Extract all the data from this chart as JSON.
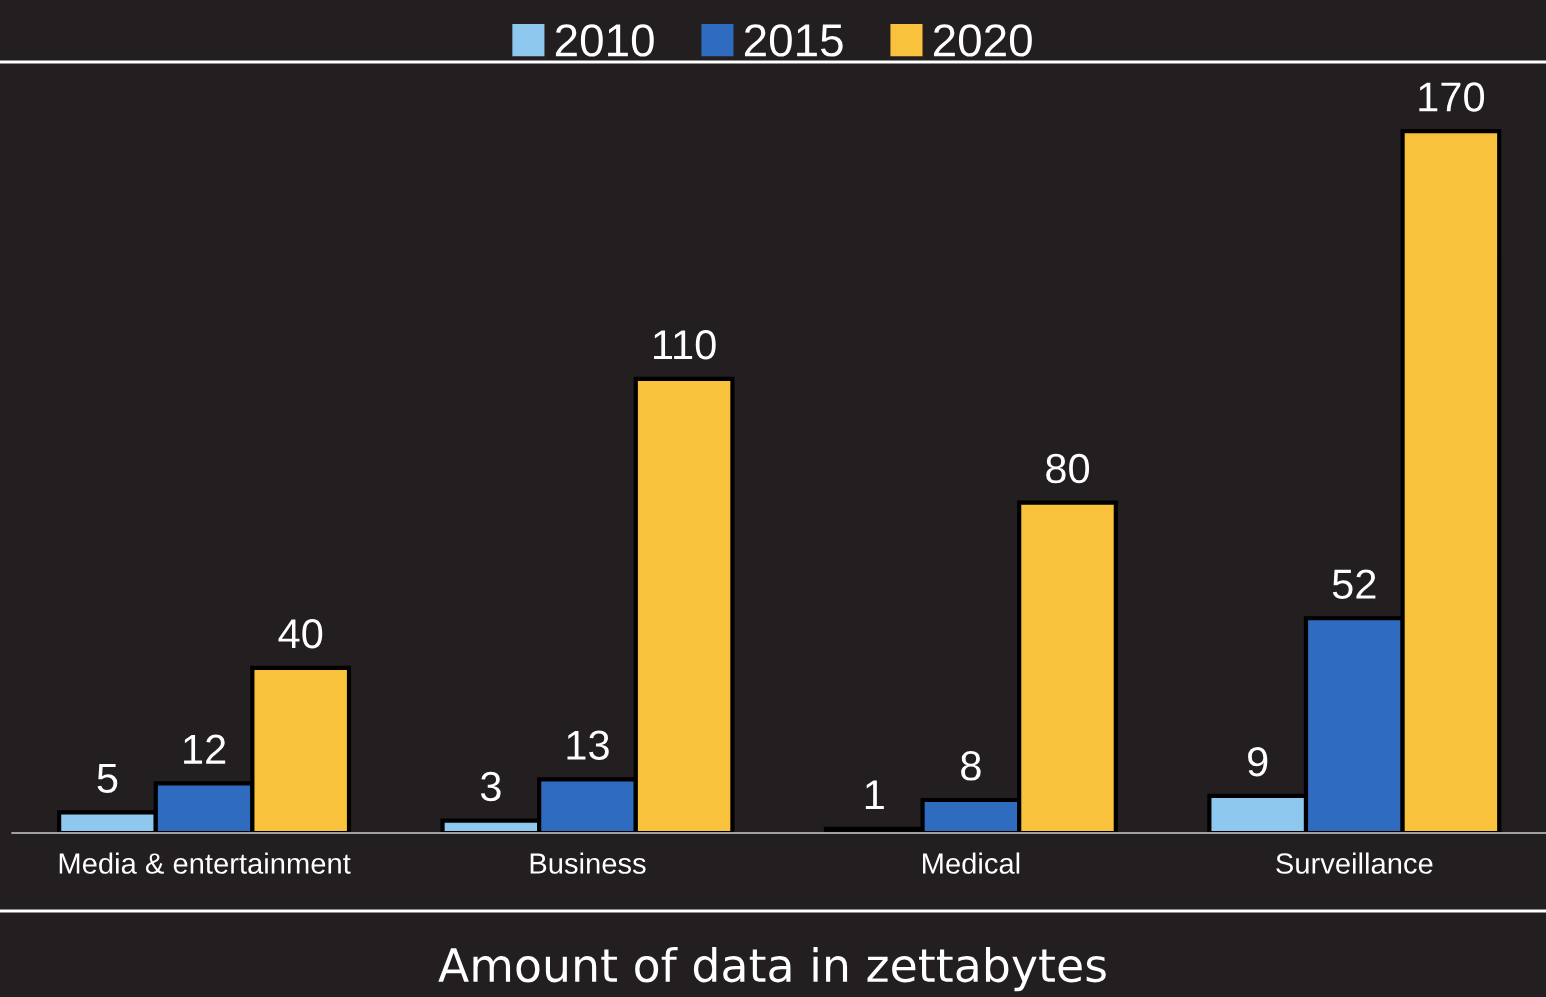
{
  "chart_data": {
    "type": "bar",
    "title": "Amount of data in zettabytes",
    "categories": [
      "Media & entertainment",
      "Business",
      "Medical",
      "Surveillance"
    ],
    "series": [
      {
        "name": "2010",
        "color": "#8ec8ee",
        "values": [
          5,
          3,
          1,
          9
        ]
      },
      {
        "name": "2015",
        "color": "#2f6cc0",
        "values": [
          12,
          13,
          8,
          52
        ]
      },
      {
        "name": "2020",
        "color": "#f9c23c",
        "values": [
          40,
          110,
          80,
          170
        ]
      }
    ],
    "ylim": [
      0,
      186
    ],
    "tick_labels": "x",
    "data_labels": true,
    "legend": "top",
    "grid": false
  }
}
